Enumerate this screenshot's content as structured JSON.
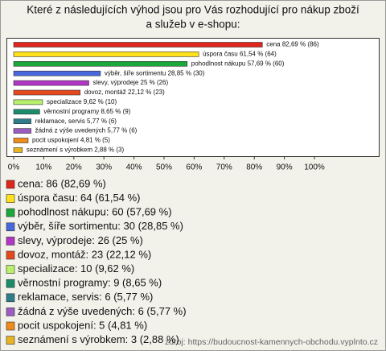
{
  "chart_data": {
    "type": "barh",
    "title": [
      "Které z následujících výhod jsou pro Vás rozhodující pro nákup zboží",
      "a služeb v e-shopu:"
    ],
    "categories": [
      "cena",
      "úspora času",
      "pohodlnost nákupu",
      "výběr, šíře sortimentu",
      "slevy, výprodeje",
      "dovoz, montáž",
      "specializace",
      "věrnostní programy",
      "reklamace, servis",
      "žádná z výše uvedených",
      "pocit uspokojení",
      "seznámení s výrobkem"
    ],
    "values": [
      82.69,
      61.54,
      57.69,
      28.85,
      25,
      22.12,
      9.62,
      8.65,
      5.77,
      5.77,
      4.81,
      2.88
    ],
    "value_labels": [
      "cena 82,69 % (86)",
      "úspora času 61,54 % (64)",
      "pohodlnost nákupu 57,69 % (60)",
      "výběr, šíře sortimentu 28,85 % (30)",
      "slevy, výprodeje 25 % (26)",
      "dovoz, montáž 22,12 % (23)",
      "specializace 9,62 % (10)",
      "věrnostní programy 8,65 % (9)",
      "reklamace, servis 5,77 % (6)",
      "žádná z výše uvedených 5,77 % (6)",
      "pocit uspokojení 4,81 % (5)",
      "seznámení s výrobkem 2,88 % (3)"
    ],
    "legend_labels": [
      "cena: 86 (82,69 %)",
      "úspora času: 64 (61,54 %)",
      "pohodlnost nákupu: 60 (57,69 %)",
      "výběr, šíře sortimentu: 30 (28,85 %)",
      "slevy, výprodeje: 26 (25 %)",
      "dovoz, montáž: 23 (22,12 %)",
      "specializace: 10 (9,62 %)",
      "věrnostní programy: 9 (8,65 %)",
      "reklamace, servis: 6 (5,77 %)",
      "žádná z výše uvedených: 6 (5,77 %)",
      "pocit uspokojení: 5 (4,81 %)",
      "seznámení s výrobkem: 3 (2,88 %)"
    ],
    "colors": [
      "#e0251c",
      "#ffe21a",
      "#1aa83a",
      "#4768dc",
      "#b136c6",
      "#e44a1e",
      "#b8f06c",
      "#1b8d6c",
      "#2d7c8c",
      "#9a5cc0",
      "#ef8a1c",
      "#e7b224"
    ],
    "xlim": [
      0,
      100
    ],
    "xticks": [
      {
        "value": 0,
        "label": "0%"
      },
      {
        "value": 10,
        "label": "10%"
      },
      {
        "value": 20,
        "label": "20%"
      },
      {
        "value": 30,
        "label": "30%"
      },
      {
        "value": 40,
        "label": "40%"
      },
      {
        "value": 50,
        "label": "50%"
      },
      {
        "value": 60,
        "label": "60%"
      },
      {
        "value": 70,
        "label": "70%"
      },
      {
        "value": 80,
        "label": "80%"
      },
      {
        "value": 90,
        "label": "90%"
      },
      {
        "value": 100,
        "label": "100%"
      }
    ],
    "source": "zdroj: https://budoucnost-kamennych-obchodu.vyplnto.cz"
  }
}
